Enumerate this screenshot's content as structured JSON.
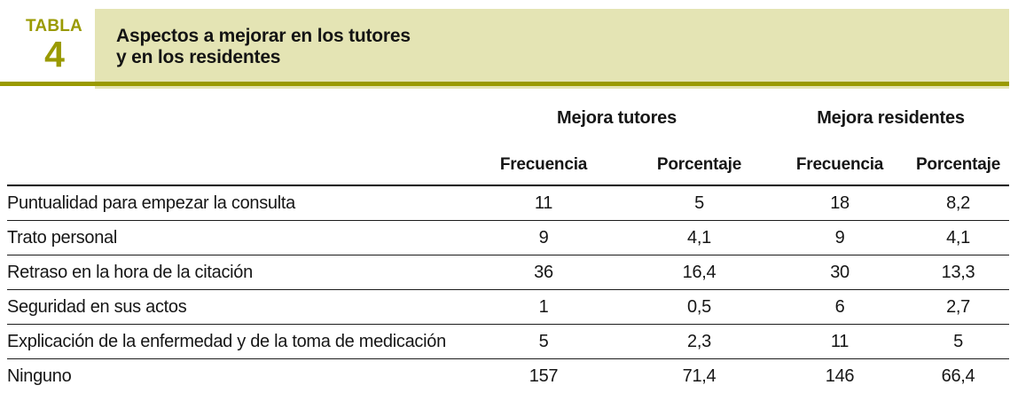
{
  "colors": {
    "accent_olive": "#9a9a00",
    "banner_background": "#e4e4b4",
    "bottom_rule_gray": "#6f6f6f",
    "text": "#161616"
  },
  "caption": {
    "word": "TABLA",
    "number": "4"
  },
  "title": {
    "line1": "Aspectos a mejorar en los tutores",
    "line2": "y en los residentes"
  },
  "columns": {
    "groups": [
      {
        "label": "Mejora tutores"
      },
      {
        "label": "Mejora residentes"
      }
    ],
    "subheaders": [
      "Frecuencia",
      "Porcentaje",
      "Frecuencia",
      "Porcentaje"
    ]
  },
  "rows": [
    {
      "label": "Puntualidad para empezar la consulta",
      "values": [
        "11",
        "5",
        "18",
        "8,2"
      ]
    },
    {
      "label": "Trato personal",
      "values": [
        "9",
        "4,1",
        "9",
        "4,1"
      ]
    },
    {
      "label": "Retraso en la hora de la citación",
      "values": [
        "36",
        "16,4",
        "30",
        "13,3"
      ]
    },
    {
      "label": "Seguridad en sus actos",
      "values": [
        "1",
        "0,5",
        "6",
        "2,7"
      ]
    },
    {
      "label": "Explicación de la enfermedad y de la toma de medicación",
      "values": [
        "5",
        "2,3",
        "11",
        "5"
      ]
    },
    {
      "label": "Ninguno",
      "values": [
        "157",
        "71,4",
        "146",
        "66,4"
      ]
    }
  ],
  "chart_data": {
    "type": "table",
    "title": "Aspectos a mejorar en los tutores y en los residentes",
    "column_groups": [
      "Mejora tutores",
      "Mejora residentes"
    ],
    "columns": [
      "Frecuencia",
      "Porcentaje",
      "Frecuencia",
      "Porcentaje"
    ],
    "categories": [
      "Puntualidad para empezar la consulta",
      "Trato personal",
      "Retraso en la hora de la citación",
      "Seguridad en sus actos",
      "Explicación de la enfermedad y de la toma de medicación",
      "Ninguno"
    ],
    "series": [
      {
        "name": "Mejora tutores - Frecuencia",
        "values": [
          11,
          9,
          36,
          1,
          5,
          157
        ]
      },
      {
        "name": "Mejora tutores - Porcentaje",
        "values": [
          5,
          4.1,
          16.4,
          0.5,
          2.3,
          71.4
        ]
      },
      {
        "name": "Mejora residentes - Frecuencia",
        "values": [
          18,
          9,
          30,
          6,
          11,
          146
        ]
      },
      {
        "name": "Mejora residentes - Porcentaje",
        "values": [
          8.2,
          4.1,
          13.3,
          2.7,
          5,
          66.4
        ]
      }
    ]
  }
}
